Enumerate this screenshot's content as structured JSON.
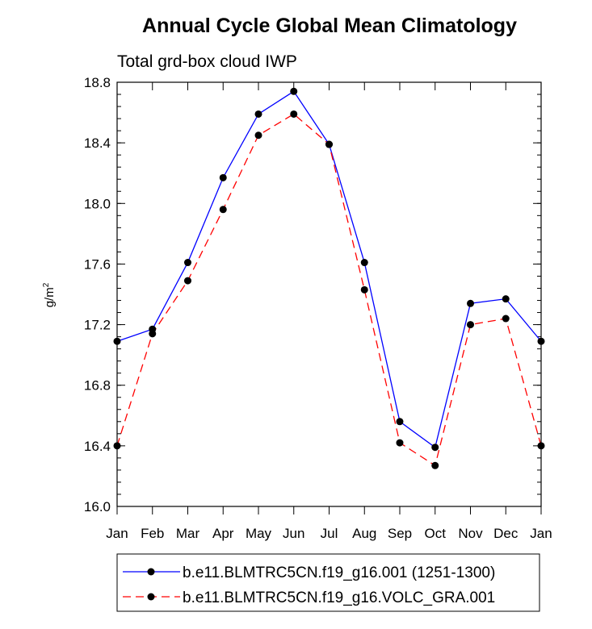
{
  "chart_data": {
    "type": "line",
    "title": "Annual Cycle Global Mean Climatology",
    "subtitle": "Total grd-box cloud IWP",
    "ylabel_base": "g/m",
    "ylabel_sup": "2",
    "xlabel": "",
    "categories": [
      "Jan",
      "Feb",
      "Mar",
      "Apr",
      "May",
      "Jun",
      "Jul",
      "Aug",
      "Sep",
      "Oct",
      "Nov",
      "Dec",
      "Jan"
    ],
    "ylim": [
      16.0,
      18.8
    ],
    "yticks": [
      "16.0",
      "16.4",
      "16.8",
      "17.2",
      "17.6",
      "18.0",
      "18.4",
      "18.8"
    ],
    "series": [
      {
        "name": "b.e11.BLMTRC5CN.f19_g16.001 (1251-1300)",
        "color": "#0000ff",
        "style": "solid",
        "values": [
          17.09,
          17.17,
          17.61,
          18.17,
          18.59,
          18.74,
          18.39,
          17.61,
          16.56,
          16.39,
          17.34,
          17.37,
          17.09
        ]
      },
      {
        "name": "b.e11.BLMTRC5CN.f19_g16.VOLC_GRA.001",
        "color": "#ff0000",
        "style": "dashed",
        "values": [
          16.4,
          17.14,
          17.49,
          17.96,
          18.45,
          18.59,
          18.39,
          17.43,
          16.42,
          16.27,
          17.2,
          17.24,
          16.4
        ]
      }
    ],
    "marker_color": "#000000"
  }
}
